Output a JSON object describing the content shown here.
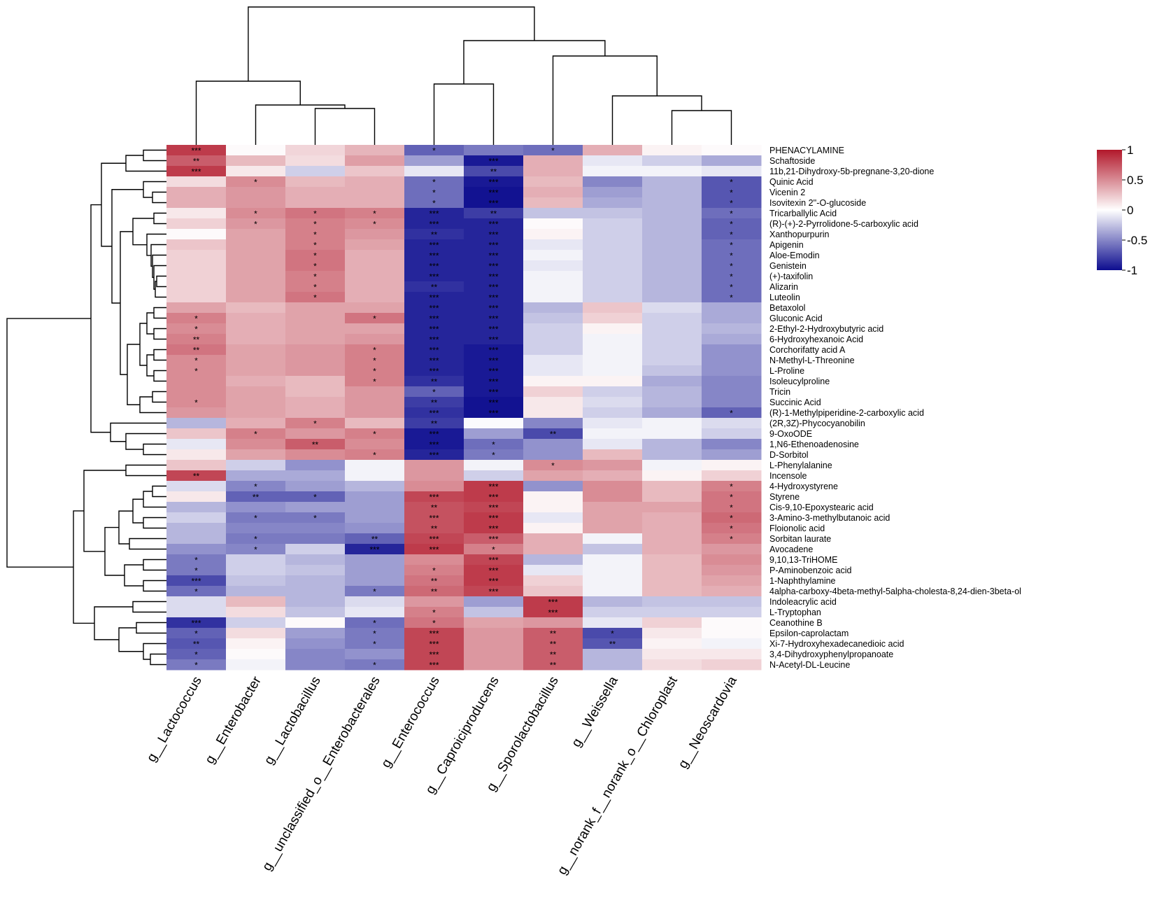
{
  "chart_data": {
    "type": "heatmap",
    "title": "",
    "columns": [
      "g__Lactococcus",
      "g__Enterobacter",
      "g__Lactobacillus",
      "g__unclassified_o__Enterobacterales",
      "g__Enterococcus",
      "g__Caproiciproducens",
      "g__Sporolactobacillus",
      "g__Weissella",
      "g__norank_f__norank_o__Chloroplast",
      "g__Neoscardovia"
    ],
    "rows": [
      "PHENACYLAMINE",
      "Schaftoside",
      "11b,21-Dihydroxy-5b-pregnane-3,20-dione",
      "Quinic Acid",
      "Vicenin 2",
      "Isovitexin 2''-O-glucoside",
      "Tricarballylic Acid",
      "(R)-(+)-2-Pyrrolidone-5-carboxylic acid",
      "Xanthopurpurin",
      "Apigenin",
      "Aloe-Emodin",
      "Genistein",
      "(+)-taxifolin",
      "Alizarin",
      "Luteolin",
      "Betaxolol",
      "Gluconic Acid",
      "2-Ethyl-2-Hydroxybutyric acid",
      "6-Hydroxyhexanoic Acid",
      "Corchorifatty acid A",
      "N-Methyl-L-Threonine",
      "L-Proline",
      "Isoleucylproline",
      "Tricin",
      "Succinic Acid",
      "(R)-1-Methylpiperidine-2-carboxylic acid",
      "(2R,3Z)-Phycocyanobilin",
      "9-OxoODE",
      "1,N6-Ethenoadenosine",
      "D-Sorbitol",
      "L-Phenylalanine",
      "Incensole",
      "4-Hydroxystyrene",
      "Styrene",
      "Cis-9,10-Epoxystearic acid",
      "3-Amino-3-methylbutanoic acid",
      "Floionolic acid",
      "Sorbitan laurate",
      "Avocadene",
      "9,10,13-TriHOME",
      "P-Aminobenzoic acid",
      "1-Naphthylamine",
      "4alpha-carboxy-4beta-methyl-5alpha-cholesta-8,24-dien-3beta-ol",
      "Indoleacrylic acid",
      "L-Tryptophan",
      "Ceanothine B",
      "Epsilon-caprolactam",
      "Xi-7-Hydroxyhexadecanedioic acid",
      "3,4-Dihydroxyphenylpropanoate",
      "N-Acetyl-DL-Leucine"
    ],
    "values": [
      [
        0.85,
        0.02,
        0.18,
        0.32,
        -0.65,
        -0.55,
        -0.6,
        0.35,
        0.05,
        0.02
      ],
      [
        0.7,
        0.3,
        0.15,
        0.42,
        -0.4,
        -0.95,
        0.35,
        -0.1,
        -0.2,
        -0.35
      ],
      [
        0.85,
        0.1,
        -0.2,
        0.25,
        -0.1,
        -0.75,
        0.35,
        -0.05,
        -0.05,
        -0.1
      ],
      [
        0.15,
        0.5,
        0.3,
        0.35,
        -0.6,
        -0.95,
        0.3,
        -0.5,
        -0.3,
        -0.7
      ],
      [
        0.35,
        0.45,
        0.35,
        0.35,
        -0.6,
        -0.98,
        0.35,
        -0.4,
        -0.3,
        -0.7
      ],
      [
        0.35,
        0.45,
        0.35,
        0.35,
        -0.6,
        -0.98,
        0.3,
        -0.35,
        -0.3,
        -0.7
      ],
      [
        0.1,
        0.5,
        0.6,
        0.55,
        -0.9,
        -0.8,
        -0.25,
        -0.25,
        -0.3,
        -0.6
      ],
      [
        0.2,
        0.45,
        0.55,
        0.5,
        -0.9,
        -0.9,
        0.02,
        -0.2,
        -0.3,
        -0.65
      ],
      [
        0.02,
        0.4,
        0.55,
        0.45,
        -0.85,
        -0.9,
        0.05,
        -0.2,
        -0.3,
        -0.65
      ],
      [
        0.25,
        0.4,
        0.55,
        0.4,
        -0.9,
        -0.9,
        -0.1,
        -0.2,
        -0.3,
        -0.6
      ],
      [
        0.2,
        0.4,
        0.6,
        0.35,
        -0.9,
        -0.9,
        -0.05,
        -0.2,
        -0.3,
        -0.6
      ],
      [
        0.2,
        0.4,
        0.6,
        0.35,
        -0.9,
        -0.9,
        -0.1,
        -0.2,
        -0.3,
        -0.6
      ],
      [
        0.2,
        0.4,
        0.55,
        0.35,
        -0.9,
        -0.9,
        -0.05,
        -0.2,
        -0.3,
        -0.6
      ],
      [
        0.2,
        0.4,
        0.55,
        0.35,
        -0.85,
        -0.9,
        -0.05,
        -0.2,
        -0.3,
        -0.6
      ],
      [
        0.2,
        0.4,
        0.6,
        0.35,
        -0.9,
        -0.9,
        -0.05,
        -0.2,
        -0.3,
        -0.6
      ],
      [
        0.4,
        0.3,
        0.4,
        0.4,
        -0.9,
        -0.9,
        -0.3,
        0.25,
        -0.15,
        -0.35
      ],
      [
        0.55,
        0.35,
        0.4,
        0.6,
        -0.9,
        -0.9,
        -0.25,
        0.2,
        -0.2,
        -0.35
      ],
      [
        0.5,
        0.35,
        0.4,
        0.4,
        -0.9,
        -0.9,
        -0.2,
        0.05,
        -0.2,
        -0.3
      ],
      [
        0.55,
        0.35,
        0.4,
        0.45,
        -0.9,
        -0.9,
        -0.2,
        -0.05,
        -0.2,
        -0.35
      ],
      [
        0.6,
        0.4,
        0.45,
        0.55,
        -0.9,
        -0.95,
        -0.2,
        -0.05,
        -0.2,
        -0.45
      ],
      [
        0.5,
        0.4,
        0.45,
        0.55,
        -0.9,
        -0.95,
        -0.1,
        -0.05,
        -0.2,
        -0.45
      ],
      [
        0.5,
        0.4,
        0.45,
        0.55,
        -0.9,
        -0.95,
        -0.1,
        -0.05,
        -0.25,
        -0.45
      ],
      [
        0.5,
        0.35,
        0.3,
        0.55,
        -0.85,
        -0.95,
        0.05,
        0.05,
        -0.35,
        -0.5
      ],
      [
        0.5,
        0.4,
        0.3,
        0.45,
        -0.65,
        -0.95,
        0.2,
        -0.2,
        -0.3,
        -0.5
      ],
      [
        0.5,
        0.4,
        0.35,
        0.45,
        -0.8,
        -0.98,
        0.1,
        -0.15,
        -0.3,
        -0.5
      ],
      [
        0.45,
        0.4,
        0.35,
        0.45,
        -0.85,
        -0.98,
        0.1,
        -0.2,
        -0.35,
        -0.65
      ],
      [
        -0.3,
        0.35,
        0.55,
        0.3,
        -0.8,
        -0.02,
        -0.5,
        -0.1,
        -0.05,
        -0.15
      ],
      [
        0.25,
        0.55,
        0.45,
        0.55,
        -0.95,
        -0.4,
        -0.75,
        -0.05,
        -0.05,
        -0.2
      ],
      [
        -0.1,
        0.5,
        0.7,
        0.5,
        -0.95,
        -0.6,
        -0.45,
        -0.1,
        -0.3,
        -0.5
      ],
      [
        0.1,
        0.4,
        0.5,
        0.55,
        -0.9,
        -0.55,
        -0.45,
        0.3,
        -0.3,
        -0.4
      ],
      [
        0.25,
        -0.2,
        -0.45,
        -0.05,
        0.45,
        -0.05,
        0.5,
        0.45,
        -0.05,
        0.05
      ],
      [
        0.8,
        -0.35,
        -0.35,
        -0.05,
        0.45,
        -0.2,
        0.4,
        0.35,
        0.05,
        0.2
      ],
      [
        -0.15,
        -0.5,
        -0.4,
        -0.3,
        0.5,
        0.85,
        -0.45,
        0.5,
        0.3,
        0.55
      ],
      [
        0.1,
        -0.65,
        -0.65,
        -0.4,
        0.8,
        0.85,
        0.05,
        0.5,
        0.3,
        0.6
      ],
      [
        -0.3,
        -0.45,
        -0.4,
        -0.4,
        0.75,
        0.8,
        0.05,
        0.4,
        0.4,
        0.6
      ],
      [
        -0.2,
        -0.55,
        -0.55,
        -0.4,
        0.75,
        0.85,
        -0.1,
        0.4,
        0.35,
        0.65
      ],
      [
        -0.3,
        -0.5,
        -0.5,
        -0.45,
        0.75,
        0.85,
        0.05,
        0.4,
        0.35,
        0.6
      ],
      [
        -0.3,
        -0.55,
        -0.55,
        -0.65,
        0.8,
        0.7,
        0.35,
        -0.05,
        0.35,
        0.55
      ],
      [
        -0.45,
        -0.5,
        -0.2,
        -0.9,
        0.85,
        0.55,
        0.35,
        -0.25,
        0.35,
        0.45
      ],
      [
        -0.55,
        -0.2,
        -0.3,
        -0.4,
        0.5,
        0.8,
        -0.3,
        -0.05,
        0.3,
        0.5
      ],
      [
        -0.55,
        -0.2,
        -0.25,
        -0.4,
        0.55,
        0.85,
        -0.1,
        -0.05,
        0.3,
        0.45
      ],
      [
        -0.75,
        -0.25,
        -0.3,
        -0.4,
        0.6,
        0.85,
        0.2,
        -0.05,
        0.3,
        0.4
      ],
      [
        -0.6,
        -0.3,
        -0.3,
        -0.55,
        0.65,
        0.8,
        0.25,
        -0.05,
        0.3,
        0.35
      ],
      [
        -0.15,
        0.3,
        -0.3,
        -0.15,
        0.45,
        -0.4,
        0.85,
        -0.3,
        -0.25,
        -0.25
      ],
      [
        -0.15,
        0.15,
        -0.25,
        -0.1,
        0.55,
        -0.25,
        0.85,
        -0.2,
        -0.2,
        -0.2
      ],
      [
        -0.85,
        -0.2,
        0.02,
        -0.6,
        0.6,
        0.4,
        0.45,
        -0.1,
        0.2,
        0.02
      ],
      [
        -0.65,
        0.15,
        -0.4,
        -0.55,
        0.8,
        0.45,
        0.7,
        -0.75,
        0.1,
        0.02
      ],
      [
        -0.7,
        0.05,
        -0.45,
        -0.55,
        0.8,
        0.45,
        0.7,
        -0.7,
        0.05,
        -0.05
      ],
      [
        -0.65,
        0.02,
        -0.5,
        -0.45,
        0.8,
        0.45,
        0.7,
        -0.3,
        0.1,
        0.1
      ],
      [
        -0.55,
        -0.05,
        -0.5,
        -0.55,
        0.8,
        0.45,
        0.7,
        -0.3,
        0.15,
        0.2
      ]
    ],
    "significance": [
      [
        "***",
        "",
        "",
        "",
        "*",
        "",
        "*",
        "",
        "",
        ""
      ],
      [
        "**",
        "",
        "",
        "",
        "",
        "***",
        "",
        "",
        "",
        ""
      ],
      [
        "***",
        "",
        "",
        "",
        "",
        "**",
        "",
        "",
        "",
        ""
      ],
      [
        "",
        "*",
        "",
        "",
        "*",
        "***",
        "",
        "",
        "",
        "*"
      ],
      [
        "",
        "",
        "",
        "",
        "*",
        "***",
        "",
        "",
        "",
        "*"
      ],
      [
        "",
        "",
        "",
        "",
        "*",
        "***",
        "",
        "",
        "",
        "*"
      ],
      [
        "",
        "*",
        "*",
        "*",
        "***",
        "**",
        "",
        "",
        "",
        "*"
      ],
      [
        "",
        "*",
        "*",
        "*",
        "***",
        "***",
        "",
        "",
        "",
        "*"
      ],
      [
        "",
        "",
        "*",
        "",
        "**",
        "***",
        "",
        "",
        "",
        "*"
      ],
      [
        "",
        "",
        "*",
        "",
        "***",
        "***",
        "",
        "",
        "",
        "*"
      ],
      [
        "",
        "",
        "*",
        "",
        "***",
        "***",
        "",
        "",
        "",
        "*"
      ],
      [
        "",
        "",
        "*",
        "",
        "***",
        "***",
        "",
        "",
        "",
        "*"
      ],
      [
        "",
        "",
        "*",
        "",
        "***",
        "***",
        "",
        "",
        "",
        "*"
      ],
      [
        "",
        "",
        "*",
        "",
        "**",
        "***",
        "",
        "",
        "",
        "*"
      ],
      [
        "",
        "",
        "*",
        "",
        "***",
        "***",
        "",
        "",
        "",
        "*"
      ],
      [
        "",
        "",
        "",
        "",
        "***",
        "***",
        "",
        "",
        "",
        ""
      ],
      [
        "*",
        "",
        "",
        "*",
        "***",
        "***",
        "",
        "",
        "",
        ""
      ],
      [
        "*",
        "",
        "",
        "",
        "***",
        "***",
        "",
        "",
        "",
        ""
      ],
      [
        "**",
        "",
        "",
        "",
        "***",
        "***",
        "",
        "",
        "",
        ""
      ],
      [
        "**",
        "",
        "",
        "*",
        "***",
        "***",
        "",
        "",
        "",
        ""
      ],
      [
        "*",
        "",
        "",
        "*",
        "***",
        "***",
        "",
        "",
        "",
        ""
      ],
      [
        "*",
        "",
        "",
        "*",
        "***",
        "***",
        "",
        "",
        "",
        ""
      ],
      [
        "",
        "",
        "",
        "*",
        "**",
        "***",
        "",
        "",
        "",
        ""
      ],
      [
        "",
        "",
        "",
        "",
        "*",
        "***",
        "",
        "",
        "",
        ""
      ],
      [
        "*",
        "",
        "",
        "",
        "**",
        "***",
        "",
        "",
        "",
        ""
      ],
      [
        "",
        "",
        "",
        "",
        "***",
        "***",
        "",
        "",
        "",
        "*"
      ],
      [
        "",
        "",
        "*",
        "",
        "**",
        "",
        "",
        "",
        "",
        ""
      ],
      [
        "",
        "*",
        "",
        "*",
        "***",
        "",
        "**",
        "",
        "",
        ""
      ],
      [
        "",
        "",
        "**",
        "",
        "***",
        "*",
        "",
        "",
        "",
        ""
      ],
      [
        "",
        "",
        "",
        "*",
        "***",
        "*",
        "",
        "",
        "",
        ""
      ],
      [
        "",
        "",
        "",
        "",
        "",
        "",
        "*",
        "",
        "",
        ""
      ],
      [
        "**",
        "",
        "",
        "",
        "",
        "",
        "",
        "",
        "",
        ""
      ],
      [
        "",
        "*",
        "",
        "",
        "",
        "***",
        "",
        "",
        "",
        "*"
      ],
      [
        "",
        "**",
        "*",
        "",
        "***",
        "***",
        "",
        "",
        "",
        "*"
      ],
      [
        "",
        "",
        "",
        "",
        "**",
        "***",
        "",
        "",
        "",
        "*"
      ],
      [
        "",
        "*",
        "*",
        "",
        "***",
        "***",
        "",
        "",
        "",
        "*"
      ],
      [
        "",
        "",
        "",
        "",
        "**",
        "***",
        "",
        "",
        "",
        "*"
      ],
      [
        "",
        "*",
        "",
        "**",
        "***",
        "***",
        "",
        "",
        "",
        "*"
      ],
      [
        "",
        "*",
        "",
        "***",
        "***",
        "*",
        "",
        "",
        "",
        ""
      ],
      [
        "*",
        "",
        "",
        "",
        "",
        "***",
        "",
        "",
        "",
        ""
      ],
      [
        "*",
        "",
        "",
        "",
        "*",
        "***",
        "",
        "",
        "",
        ""
      ],
      [
        "***",
        "",
        "",
        "",
        "**",
        "***",
        "",
        "",
        "",
        ""
      ],
      [
        "*",
        "",
        "",
        "*",
        "**",
        "***",
        "",
        "",
        "",
        ""
      ],
      [
        "",
        "",
        "",
        "",
        "",
        "",
        "***",
        "",
        "",
        ""
      ],
      [
        "",
        "",
        "",
        "",
        "*",
        "",
        "***",
        "",
        "",
        ""
      ],
      [
        "***",
        "",
        "",
        "*",
        "*",
        "",
        "",
        "",
        "",
        ""
      ],
      [
        "*",
        "",
        "",
        "*",
        "***",
        "",
        "**",
        "*",
        "",
        ""
      ],
      [
        "**",
        "",
        "",
        "*",
        "***",
        "",
        "**",
        "**",
        "",
        ""
      ],
      [
        "*",
        "",
        "",
        "",
        "***",
        "",
        "**",
        "",
        "",
        ""
      ],
      [
        "*",
        "",
        "",
        "*",
        "***",
        "",
        "**",
        "",
        "",
        ""
      ]
    ],
    "legend": {
      "type": "colorbar",
      "range": [
        -1,
        1
      ],
      "ticks": [
        "1",
        "0.5",
        "0",
        "-0.5",
        "-1"
      ],
      "placement": "top-right"
    },
    "colors": {
      "low": "#0d0d8f",
      "mid": "#ffffff",
      "high": "#b2182b"
    },
    "row_dendrogram": "left",
    "column_dendrogram": "top"
  }
}
